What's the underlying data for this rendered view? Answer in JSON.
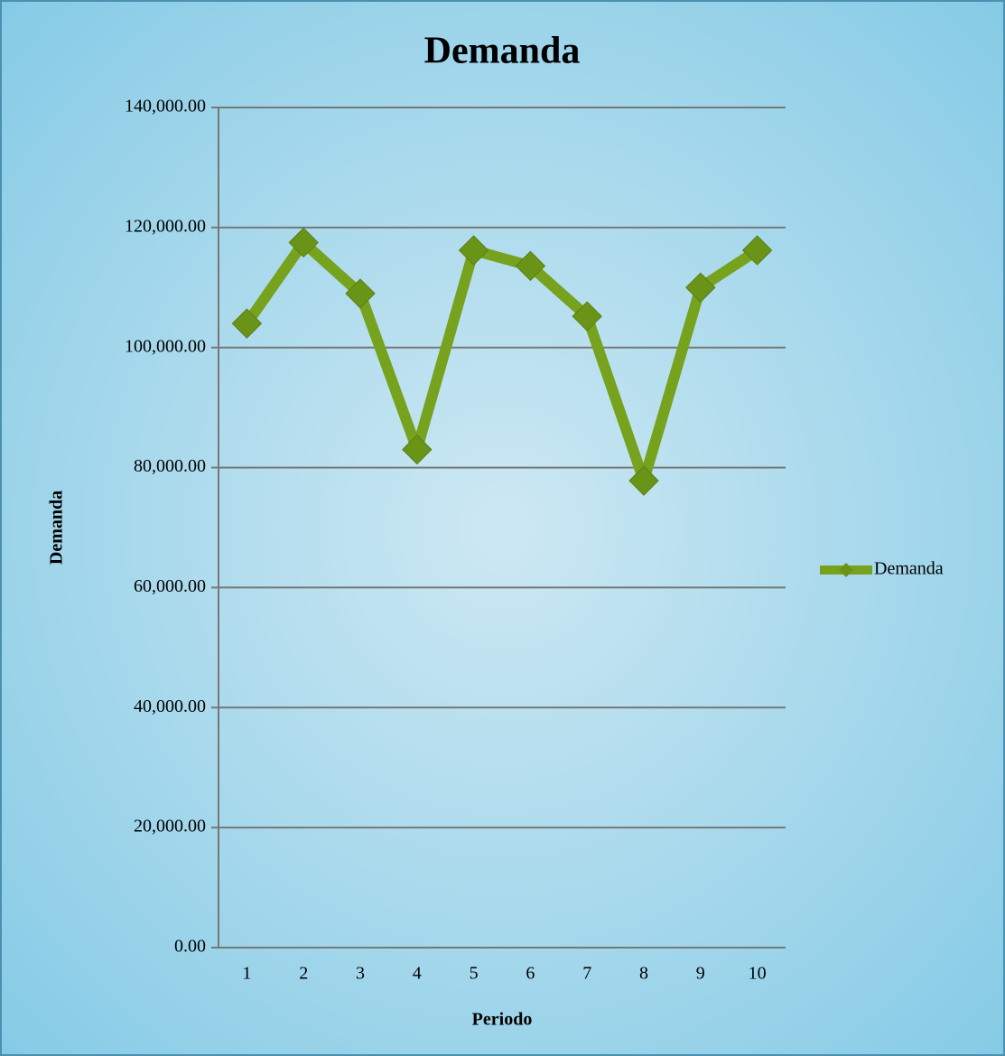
{
  "chart_data": {
    "type": "line",
    "title": "Demanda",
    "x_label": "Periodo",
    "y_label": "Demanda",
    "categories": [
      "1",
      "2",
      "3",
      "4",
      "5",
      "6",
      "7",
      "8",
      "9",
      "10"
    ],
    "series": [
      {
        "name": "Demanda",
        "color": "#76a21e",
        "values": [
          104000,
          117500,
          109000,
          83000,
          116200,
          113600,
          105200,
          77800,
          110000,
          116200
        ]
      }
    ],
    "ylim": [
      0,
      140000
    ],
    "yticks": [
      {
        "value": 0,
        "label": "0.00"
      },
      {
        "value": 20000,
        "label": "20,000.00"
      },
      {
        "value": 40000,
        "label": "40,000.00"
      },
      {
        "value": 60000,
        "label": "60,000.00"
      },
      {
        "value": 80000,
        "label": "80,000.00"
      },
      {
        "value": 100000,
        "label": "100,000.00"
      },
      {
        "value": 120000,
        "label": "120,000.00"
      },
      {
        "value": 140000,
        "label": "140,000.00"
      }
    ],
    "grid": true,
    "legend": "right"
  }
}
